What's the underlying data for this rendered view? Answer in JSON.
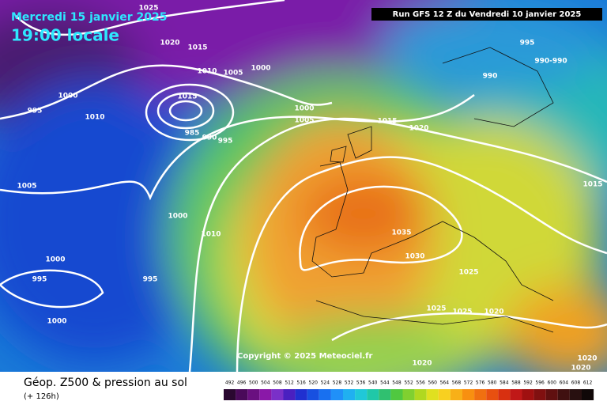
{
  "header": {
    "date": "Mercredi 15 janvier 2025",
    "time": "19:00 locale",
    "run": "Run GFS 12 Z du Vendredi 10 janvier 2025"
  },
  "copyright": "Copyright © 2025 Meteociel.fr",
  "footer": {
    "title": "Géop. Z500 & pression au sol",
    "lead": "(+ 126h)"
  },
  "colorbar": {
    "labels": [
      492,
      496,
      500,
      504,
      508,
      512,
      516,
      520,
      524,
      528,
      532,
      536,
      540,
      544,
      548,
      552,
      556,
      560,
      564,
      568,
      572,
      576,
      580,
      584,
      588,
      592,
      596,
      600,
      604,
      608,
      612
    ]
  },
  "isobar_labels": [
    "1025",
    "1020",
    "1015",
    "1010",
    "1005",
    "1000",
    "1000",
    "995",
    "1010",
    "985",
    "990",
    "995",
    "1000",
    "1005",
    "1015",
    "1020",
    "1005",
    "1000",
    "1010",
    "1000",
    "995",
    "995",
    "1000",
    "1035",
    "1030",
    "1025",
    "1025",
    "1025",
    "1020",
    "1020",
    "1020",
    "1020",
    "995",
    "990",
    "990-990",
    "1015",
    "1015"
  ]
}
